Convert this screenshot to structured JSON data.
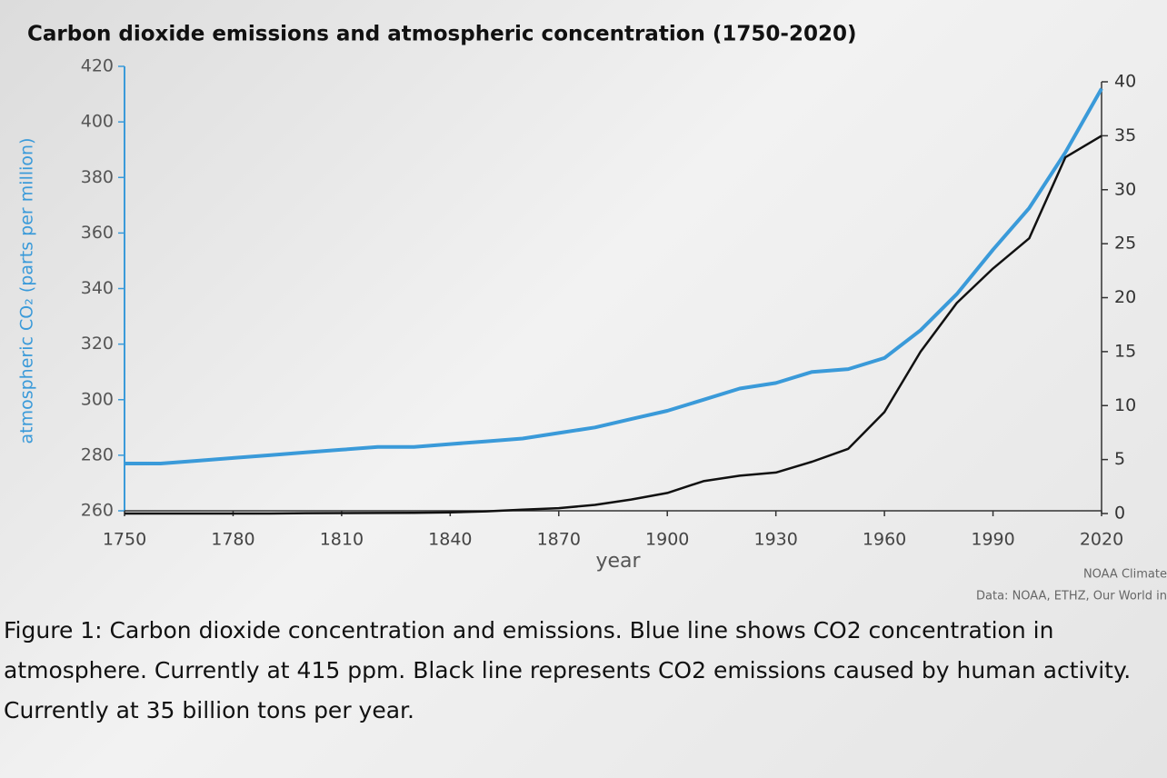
{
  "chart_data": {
    "type": "line",
    "title": "Carbon dioxide emissions and atmospheric concentration (1750-2020)",
    "x_label": "year",
    "y_label": "atmospheric CO₂ (parts per million)",
    "source_lines": [
      "NOAA Climate",
      "Data: NOAA, ETHZ, Our World in"
    ],
    "caption": "Figure 1: Carbon dioxide concentration and emissions. Blue line shows CO2 concentration in atmosphere. Currently at 415 ppm. Black line represents CO2 emissions caused by human activity. Currently at 35 billion tons per year.",
    "x": [
      1750,
      1760,
      1770,
      1780,
      1790,
      1800,
      1810,
      1820,
      1830,
      1840,
      1850,
      1860,
      1870,
      1880,
      1890,
      1900,
      1910,
      1920,
      1930,
      1940,
      1950,
      1960,
      1970,
      1980,
      1990,
      2000,
      2010,
      2020
    ],
    "xlim": [
      1750,
      2020
    ],
    "xticks": [
      1750,
      1780,
      1810,
      1840,
      1870,
      1900,
      1930,
      1960,
      1990,
      2020
    ],
    "ylim": [
      260,
      420
    ],
    "yticks": [
      260,
      280,
      300,
      320,
      340,
      360,
      380,
      400,
      420
    ],
    "y2lim": [
      0,
      40
    ],
    "y2ticks": [
      0,
      5,
      10,
      15,
      20,
      25,
      30,
      35,
      40
    ],
    "series": [
      {
        "color": "#3a9ad9",
        "values": [
          277,
          277,
          278,
          279,
          280,
          281,
          282,
          283,
          283,
          284,
          285,
          286,
          288,
          290,
          293,
          296,
          300,
          304,
          306,
          310,
          311,
          315,
          325,
          338,
          354,
          369,
          389,
          412
        ]
      },
      {
        "color": "#111111",
        "axis": "y2",
        "values": [
          0,
          0,
          0,
          0,
          0,
          0.03,
          0.04,
          0.05,
          0.07,
          0.1,
          0.2,
          0.35,
          0.5,
          0.8,
          1.3,
          1.9,
          3.0,
          3.5,
          3.8,
          4.8,
          6,
          9.4,
          15,
          19.5,
          22.7,
          25.5,
          33,
          35
        ]
      }
    ]
  }
}
